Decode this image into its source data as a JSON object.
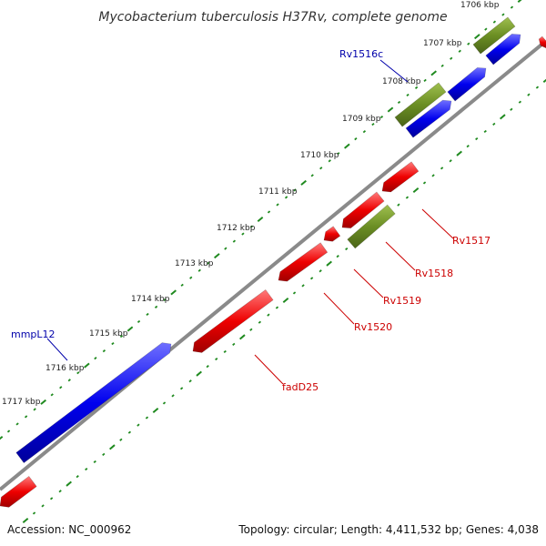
{
  "title": "Mycobacterium tuberculosis H37Rv, complete genome",
  "footer": {
    "accession": "Accession: NC_000962",
    "topology": "Topology: circular; Length: 4,411,532 bp; Genes: 4,038"
  },
  "colors": {
    "backbone": "#8a8a8a",
    "ticks": "#1f8a1f",
    "forward_gene": "#0000ee",
    "reverse_gene": "#ee0000",
    "other_feature": "#6b8e23",
    "forward_label": "#0000aa",
    "reverse_label": "#cc0000"
  },
  "ticks": [
    "1706 kbp",
    "1707 kbp",
    "1708 kbp",
    "1709 kbp",
    "1710 kbp",
    "1711 kbp",
    "1712 kbp",
    "1713 kbp",
    "1714 kbp",
    "1715 kbp",
    "1716 kbp",
    "1717 kbp"
  ],
  "gene_labels": [
    {
      "text": "Rv1516c",
      "strand": "forward"
    },
    {
      "text": "mmpL12",
      "strand": "forward"
    },
    {
      "text": "Rv1517",
      "strand": "reverse"
    },
    {
      "text": "Rv1518",
      "strand": "reverse"
    },
    {
      "text": "Rv1519",
      "strand": "reverse"
    },
    {
      "text": "Rv1520",
      "strand": "reverse"
    },
    {
      "text": "fadD25",
      "strand": "reverse"
    }
  ]
}
